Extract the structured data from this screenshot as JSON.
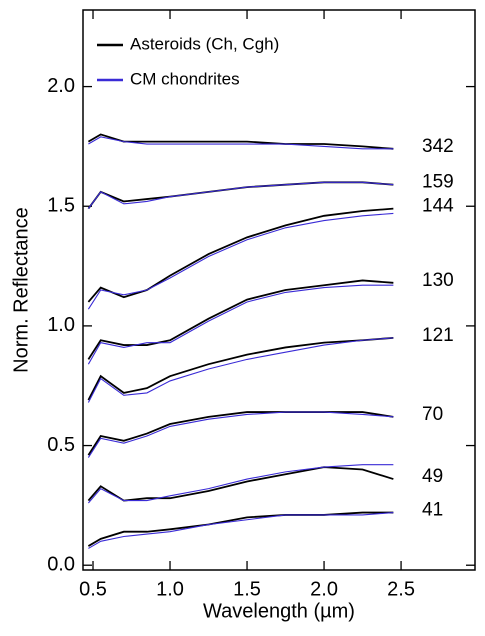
{
  "chart_data": {
    "type": "line",
    "xlabel": "Wavelength (µm)",
    "ylabel": "Norm. Reflectance",
    "legend": [
      {
        "name": "Asteroids (Ch, Cgh)",
        "color": "#000000"
      },
      {
        "name": "CM chondrites",
        "color": "#3a2bd6"
      }
    ],
    "legend_position": "upper left",
    "x": [
      0.47,
      0.55,
      0.7,
      0.85,
      1.0,
      1.25,
      1.5,
      1.75,
      2.0,
      2.25,
      2.45
    ],
    "series": [
      {
        "name": "342",
        "values": [
          1.77,
          1.8,
          1.77,
          1.77,
          1.77,
          1.77,
          1.77,
          1.76,
          1.76,
          1.75,
          1.74
        ],
        "cm_values": [
          1.76,
          1.79,
          1.77,
          1.76,
          1.76,
          1.76,
          1.76,
          1.76,
          1.75,
          1.74,
          1.74
        ]
      },
      {
        "name": "159",
        "values": [
          1.49,
          1.56,
          1.52,
          1.53,
          1.54,
          1.56,
          1.58,
          1.59,
          1.6,
          1.6,
          1.59
        ],
        "cm_values": [
          1.49,
          1.56,
          1.51,
          1.52,
          1.54,
          1.56,
          1.58,
          1.59,
          1.6,
          1.6,
          1.59
        ]
      },
      {
        "name": "144",
        "values": [
          1.1,
          1.16,
          1.12,
          1.15,
          1.21,
          1.3,
          1.37,
          1.42,
          1.46,
          1.48,
          1.49
        ],
        "cm_values": [
          1.07,
          1.15,
          1.13,
          1.15,
          1.2,
          1.29,
          1.36,
          1.41,
          1.44,
          1.46,
          1.47
        ]
      },
      {
        "name": "130",
        "values": [
          0.86,
          0.94,
          0.92,
          0.92,
          0.94,
          1.03,
          1.11,
          1.15,
          1.17,
          1.19,
          1.18
        ],
        "cm_values": [
          0.84,
          0.93,
          0.91,
          0.93,
          0.93,
          1.02,
          1.1,
          1.14,
          1.16,
          1.17,
          1.17
        ]
      },
      {
        "name": "121",
        "values": [
          0.69,
          0.79,
          0.72,
          0.74,
          0.79,
          0.84,
          0.88,
          0.91,
          0.93,
          0.94,
          0.95
        ],
        "cm_values": [
          0.68,
          0.78,
          0.71,
          0.72,
          0.77,
          0.82,
          0.86,
          0.89,
          0.92,
          0.94,
          0.95
        ]
      },
      {
        "name": "70",
        "values": [
          0.46,
          0.54,
          0.52,
          0.55,
          0.59,
          0.62,
          0.64,
          0.64,
          0.64,
          0.64,
          0.62
        ],
        "cm_values": [
          0.45,
          0.53,
          0.51,
          0.54,
          0.58,
          0.61,
          0.63,
          0.64,
          0.64,
          0.63,
          0.62
        ]
      },
      {
        "name": "49",
        "values": [
          0.27,
          0.33,
          0.27,
          0.28,
          0.28,
          0.31,
          0.35,
          0.38,
          0.41,
          0.4,
          0.36
        ],
        "cm_values": [
          0.26,
          0.32,
          0.27,
          0.27,
          0.29,
          0.32,
          0.36,
          0.39,
          0.41,
          0.42,
          0.42
        ]
      },
      {
        "name": "41",
        "values": [
          0.08,
          0.11,
          0.14,
          0.14,
          0.15,
          0.17,
          0.2,
          0.21,
          0.21,
          0.22,
          0.22
        ],
        "cm_values": [
          0.07,
          0.1,
          0.12,
          0.13,
          0.14,
          0.17,
          0.19,
          0.21,
          0.21,
          0.21,
          0.22
        ]
      }
    ],
    "xlim": [
      0.435,
      2.98
    ],
    "ylim": [
      -0.02,
      2.32
    ],
    "xticks": [
      0.5,
      {
        "value": 1,
        "label": "1.0"
      },
      1.5,
      {
        "value": 2,
        "label": "2.0"
      },
      2.5
    ],
    "yticks": [
      {
        "value": 0,
        "label": "0.0"
      },
      0.5,
      {
        "value": 1,
        "label": "1.0"
      },
      1.5,
      {
        "value": 2,
        "label": "2.0"
      }
    ],
    "grid": false
  }
}
